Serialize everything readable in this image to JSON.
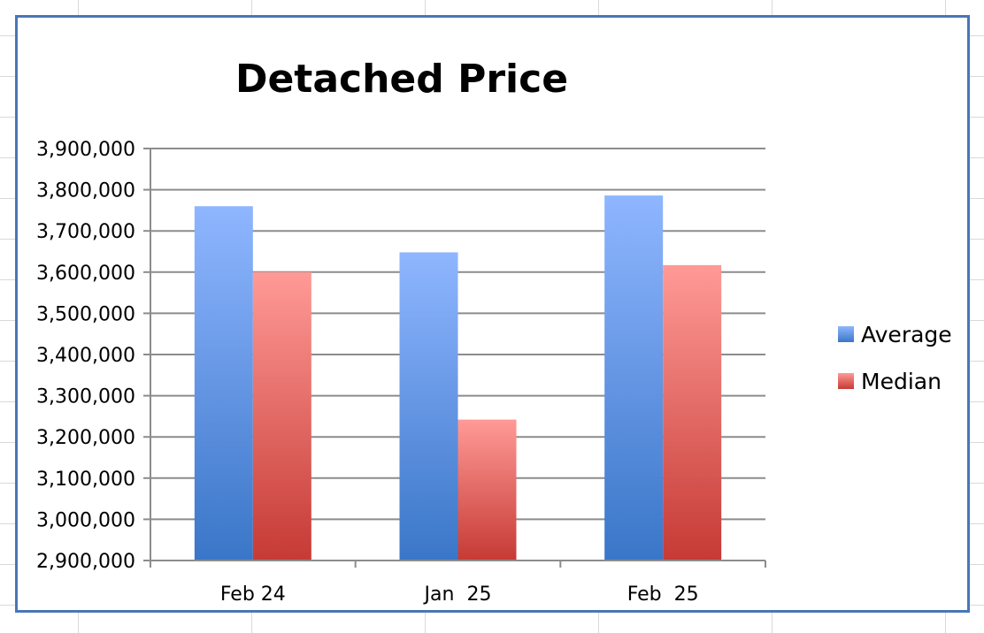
{
  "chart_data": {
    "type": "bar",
    "title": "Detached Price",
    "categories": [
      "Feb 24",
      "Jan  25",
      "Feb  25"
    ],
    "series": [
      {
        "name": "Average",
        "values": [
          3760000,
          3648000,
          3786000
        ]
      },
      {
        "name": "Median",
        "values": [
          3600000,
          3242000,
          3617000
        ]
      }
    ],
    "ylim": [
      2900000,
      3900000
    ],
    "yticks": [
      "2,900,000",
      "3,000,000",
      "3,100,000",
      "3,200,000",
      "3,300,000",
      "3,400,000",
      "3,500,000",
      "3,600,000",
      "3,700,000",
      "3,800,000",
      "3,900,000"
    ],
    "ytick_values": [
      2900000,
      3000000,
      3100000,
      3200000,
      3300000,
      3400000,
      3500000,
      3600000,
      3700000,
      3800000,
      3900000
    ],
    "grid": true,
    "legend_position": "right",
    "colors": {
      "Average": {
        "top": "#8fb6ff",
        "bottom": "#3a76c8"
      },
      "Median": {
        "top": "#ff9a96",
        "bottom": "#c63a35"
      },
      "frame": "#4a76b8",
      "gridline": "#8c8c8c"
    }
  }
}
